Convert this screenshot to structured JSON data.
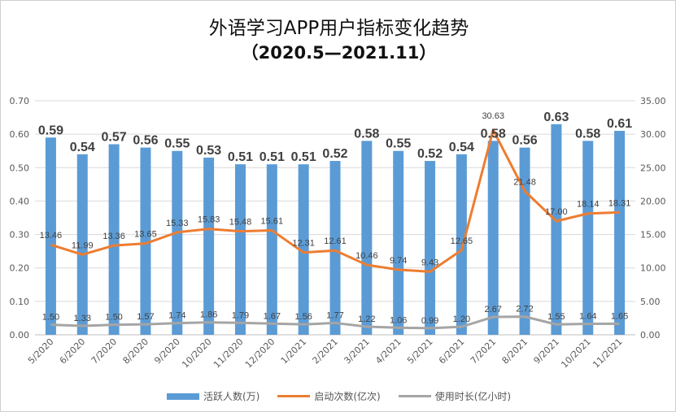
{
  "chart_data": {
    "type": "bar",
    "title": "外语学习APP用户指标变化趋势",
    "subtitle": "（2020.5—2021.11）",
    "categories": [
      "5/2020",
      "6/2020",
      "7/2020",
      "8/2020",
      "9/2020",
      "10/2020",
      "11/2020",
      "12/2020",
      "1/2021",
      "2/2021",
      "3/2021",
      "4/2021",
      "5/2021",
      "6/2021",
      "7/2021",
      "8/2021",
      "9/2021",
      "10/2021",
      "11/2021"
    ],
    "left_axis": {
      "ylim": [
        0,
        0.7
      ],
      "ticks": [
        "0.00",
        "0.10",
        "0.20",
        "0.30",
        "0.40",
        "0.50",
        "0.60",
        "0.70"
      ]
    },
    "right_axis": {
      "ylim": [
        0,
        35
      ],
      "ticks": [
        "0.00",
        "5.00",
        "10.00",
        "15.00",
        "20.00",
        "25.00",
        "30.00",
        "35.00"
      ]
    },
    "grid": true,
    "legend_placement": "bottom",
    "series": [
      {
        "name": "活跃人数(万)",
        "type": "bar",
        "axis": "left",
        "color": "#5b9bd5",
        "values": [
          0.59,
          0.54,
          0.57,
          0.56,
          0.55,
          0.53,
          0.51,
          0.51,
          0.51,
          0.52,
          0.58,
          0.55,
          0.52,
          0.54,
          0.58,
          0.56,
          0.63,
          0.58,
          0.61
        ]
      },
      {
        "name": "启动次数(亿次)",
        "type": "line",
        "axis": "right",
        "color": "#ed7d31",
        "values": [
          13.46,
          11.99,
          13.36,
          13.65,
          15.33,
          15.83,
          15.48,
          15.61,
          12.31,
          12.61,
          10.46,
          9.74,
          9.43,
          12.65,
          30.63,
          21.48,
          17.0,
          18.14,
          18.31
        ]
      },
      {
        "name": "使用时长(亿小时)",
        "type": "line",
        "axis": "right",
        "color": "#a5a5a5",
        "values": [
          1.5,
          1.33,
          1.5,
          1.57,
          1.74,
          1.86,
          1.79,
          1.67,
          1.56,
          1.77,
          1.22,
          1.06,
          0.99,
          1.2,
          2.67,
          2.72,
          1.55,
          1.64,
          1.65
        ]
      }
    ]
  }
}
